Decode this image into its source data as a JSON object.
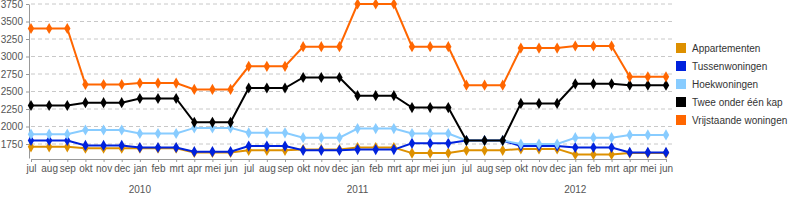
{
  "chart_data": {
    "type": "line",
    "categories": [
      "jul",
      "aug",
      "sep",
      "okt",
      "nov",
      "dec",
      "jan",
      "feb",
      "mrt",
      "apr",
      "mei",
      "jun",
      "jul",
      "aug",
      "sep",
      "okt",
      "nov",
      "dec",
      "jan",
      "feb",
      "mrt",
      "apr",
      "mei",
      "jun",
      "jul",
      "aug",
      "sep",
      "okt",
      "nov",
      "dec",
      "jan",
      "feb",
      "mrt",
      "apr",
      "mei",
      "jun"
    ],
    "year_labels": [
      null,
      null,
      null,
      null,
      null,
      null,
      "2010",
      null,
      null,
      null,
      null,
      null,
      null,
      null,
      null,
      null,
      null,
      null,
      "2011",
      null,
      null,
      null,
      null,
      null,
      null,
      null,
      null,
      null,
      null,
      null,
      "2012",
      null,
      null,
      null,
      null,
      null
    ],
    "series": [
      {
        "name": "Appartementen",
        "color": "#dd9000",
        "values": [
          1710,
          1710,
          1710,
          1690,
          1690,
          1690,
          1690,
          1690,
          1690,
          1630,
          1630,
          1630,
          1660,
          1660,
          1660,
          1670,
          1670,
          1670,
          1700,
          1700,
          1700,
          1620,
          1620,
          1620,
          1660,
          1660,
          1660,
          1680,
          1680,
          1680,
          1600,
          1600,
          1600,
          1620,
          1620,
          1620
        ]
      },
      {
        "name": "Tussenwoningen",
        "color": "#0022dd",
        "values": [
          1800,
          1800,
          1800,
          1730,
          1730,
          1730,
          1700,
          1700,
          1700,
          1640,
          1640,
          1640,
          1720,
          1720,
          1720,
          1660,
          1660,
          1660,
          1670,
          1670,
          1670,
          1760,
          1760,
          1760,
          1800,
          1800,
          1800,
          1720,
          1720,
          1720,
          1700,
          1700,
          1700,
          1630,
          1630,
          1630
        ]
      },
      {
        "name": "Hoekwoningen",
        "color": "#88ccff",
        "values": [
          1890,
          1890,
          1890,
          1950,
          1950,
          1950,
          1900,
          1900,
          1900,
          1980,
          1980,
          1980,
          1910,
          1910,
          1910,
          1840,
          1840,
          1840,
          1970,
          1970,
          1970,
          1900,
          1900,
          1900,
          1800,
          1800,
          1800,
          1750,
          1750,
          1750,
          1840,
          1840,
          1840,
          1880,
          1880,
          1880
        ]
      },
      {
        "name": "Twee onder één kap",
        "color": "#000000",
        "values": [
          2300,
          2300,
          2300,
          2340,
          2340,
          2340,
          2400,
          2400,
          2400,
          2060,
          2060,
          2060,
          2550,
          2550,
          2550,
          2700,
          2700,
          2700,
          2440,
          2440,
          2440,
          2270,
          2270,
          2270,
          1800,
          1800,
          1800,
          2330,
          2330,
          2330,
          2610,
          2610,
          2610,
          2590,
          2590,
          2590
        ]
      },
      {
        "name": "Vrijstaande woningen",
        "color": "#ff6600",
        "values": [
          3400,
          3400,
          3400,
          2600,
          2600,
          2600,
          2620,
          2620,
          2620,
          2530,
          2530,
          2530,
          2860,
          2860,
          2860,
          3140,
          3140,
          3140,
          3750,
          3750,
          3750,
          3140,
          3140,
          3140,
          2590,
          2590,
          2590,
          3120,
          3120,
          3120,
          3150,
          3150,
          3150,
          2710,
          2710,
          2710
        ]
      }
    ],
    "ylim": [
      1550,
      3750
    ],
    "yticks": [
      1750,
      2000,
      2250,
      2500,
      2750,
      3000,
      3250,
      3500,
      3750
    ],
    "grid": true,
    "legend": "right",
    "marker": "diamond"
  }
}
